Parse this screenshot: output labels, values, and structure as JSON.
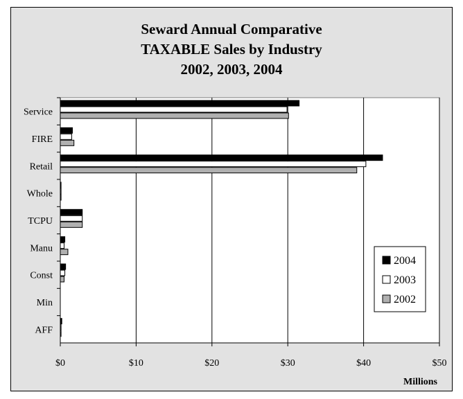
{
  "chart_data": {
    "type": "bar",
    "orientation": "horizontal",
    "title": [
      "Seward Annual Comparative",
      "TAXABLE Sales by Industry",
      "2002, 2003, 2004"
    ],
    "xlabel": "Millions",
    "ylabel": "",
    "xlim": [
      0,
      50
    ],
    "xticks": [
      0,
      10,
      20,
      30,
      40,
      50
    ],
    "tick_labels": [
      "$0",
      "$10",
      "$20",
      "$30",
      "$40",
      "$50"
    ],
    "categories": [
      "Service",
      "FIRE",
      "Retail",
      "Whole",
      "TCPU",
      "Manu",
      "Const",
      "Min",
      "AFF"
    ],
    "series": [
      {
        "name": "2004",
        "color": "#000000",
        "values": [
          31.5,
          1.6,
          42.5,
          0.1,
          2.9,
          0.6,
          0.7,
          0.0,
          0.2
        ]
      },
      {
        "name": "2003",
        "color": "#ffffff",
        "values": [
          29.9,
          1.5,
          40.3,
          0.1,
          2.9,
          0.5,
          0.6,
          0.0,
          0.1
        ]
      },
      {
        "name": "2002",
        "color": "#b0b0b0",
        "values": [
          30.1,
          1.8,
          39.1,
          0.1,
          2.9,
          1.0,
          0.5,
          0.0,
          0.1
        ]
      }
    ],
    "grid": true,
    "legend_position": "right"
  }
}
